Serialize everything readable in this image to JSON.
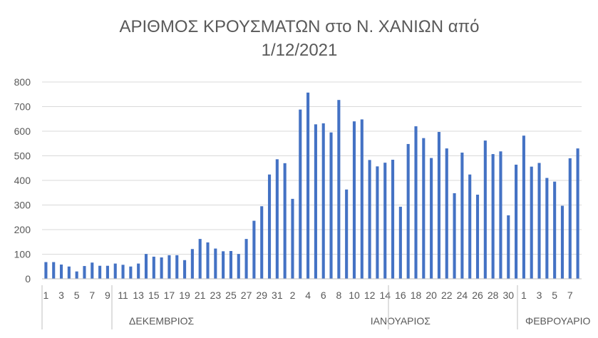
{
  "chart_data": {
    "type": "bar",
    "title": [
      "ΑΡΙΘΜΟΣ  ΚΡΟΥΣΜΑΤΩΝ στο Ν. ΧΑΝΙΩΝ από",
      "1/12/2021"
    ],
    "xlabel": "",
    "ylabel": "",
    "ylim": [
      0,
      800
    ],
    "yticks": [
      0,
      100,
      200,
      300,
      400,
      500,
      600,
      700,
      800
    ],
    "grid": true,
    "legend": "none",
    "bar_color": "#4472c4",
    "categories": [
      "1",
      "2",
      "3",
      "4",
      "5",
      "6",
      "7",
      "8",
      "9",
      "10",
      "11",
      "12",
      "13",
      "14",
      "15",
      "16",
      "17",
      "18",
      "19",
      "20",
      "21",
      "22",
      "23",
      "24",
      "25",
      "26",
      "27",
      "28",
      "29",
      "30",
      "31",
      "1",
      "2",
      "3",
      "4",
      "5",
      "6",
      "7",
      "8",
      "9",
      "10",
      "11",
      "12",
      "13",
      "14",
      "15",
      "16",
      "17",
      "18",
      "19",
      "20",
      "21",
      "22",
      "23",
      "24",
      "25",
      "26",
      "27",
      "28",
      "29",
      "30",
      "31",
      "1",
      "2",
      "3",
      "4",
      "5",
      "6",
      "7",
      "8"
    ],
    "values": [
      68,
      68,
      58,
      50,
      30,
      52,
      66,
      53,
      53,
      62,
      57,
      50,
      62,
      101,
      90,
      87,
      96,
      96,
      76,
      121,
      162,
      148,
      123,
      112,
      113,
      101,
      162,
      236,
      295,
      424,
      486,
      470,
      325,
      688,
      757,
      628,
      632,
      595,
      727,
      363,
      640,
      648,
      483,
      457,
      472,
      484,
      293,
      548,
      620,
      572,
      491,
      597,
      530,
      348,
      513,
      424,
      342,
      562,
      507,
      518,
      258,
      464,
      582,
      456,
      471,
      410,
      395,
      297,
      490,
      530
    ],
    "groups": [
      {
        "label": "ΔΕΚΕΜΒΡΙΟΣ",
        "count": 31
      },
      {
        "label": "ΙΑΝΟΥΑΡΙΟΣ",
        "count": 31
      },
      {
        "label": "ΦΕΒΡΟΥΑΡΙΟ",
        "count": 8
      }
    ],
    "tick_labels": [
      "1",
      "3",
      "5",
      "7",
      "9",
      "11",
      "13",
      "15",
      "17",
      "19",
      "21",
      "23",
      "25",
      "27",
      "29",
      "31",
      "2",
      "4",
      "6",
      "8",
      "10",
      "12",
      "14",
      "16",
      "18",
      "20",
      "22",
      "24",
      "26",
      "28",
      "30",
      "1",
      "3",
      "5",
      "7"
    ]
  }
}
